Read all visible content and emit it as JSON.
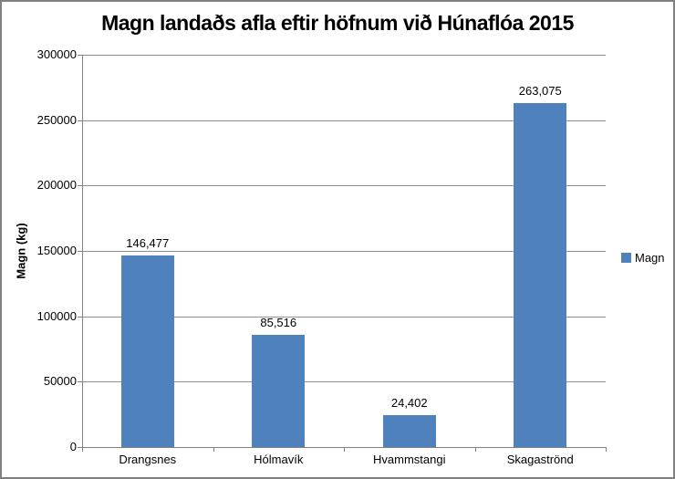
{
  "chart_data": {
    "type": "bar",
    "title": "Magn landaðs afla eftir höfnum við Húnaflóa 2015",
    "xlabel": "",
    "ylabel": "Magn (kg)",
    "categories": [
      "Drangsnes",
      "Hólmavík",
      "Hvammstangi",
      "Skagaströnd"
    ],
    "series": [
      {
        "name": "Magn",
        "color": "#4F81BD",
        "values": [
          146477,
          85516,
          24402,
          263075
        ],
        "data_labels": [
          "146,477",
          "85,516",
          "24,402",
          "263,075"
        ]
      }
    ],
    "ylim": [
      0,
      300000
    ],
    "ytick_interval": 50000,
    "ytick_labels": [
      "0",
      "50000",
      "100000",
      "150000",
      "200000",
      "250000",
      "300000"
    ],
    "grid": true,
    "legend_position": "right",
    "colors": {
      "bar": "#4F81BD",
      "gridline": "#919191",
      "axis": "#808080",
      "border": "#808080",
      "text": "#000000",
      "background": "#FFFFFF"
    }
  }
}
